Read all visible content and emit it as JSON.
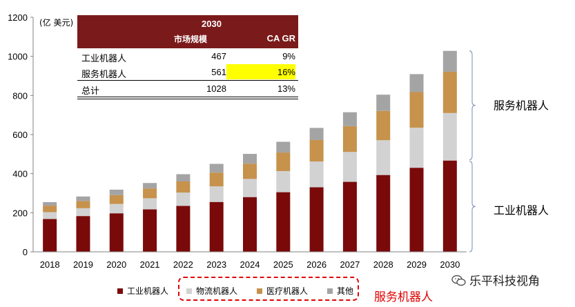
{
  "chart_data": {
    "type": "bar",
    "stacked": true,
    "unit_label": "(亿 美元)",
    "categories": [
      "2018",
      "2019",
      "2020",
      "2021",
      "2022",
      "2023",
      "2024",
      "2025",
      "2026",
      "2027",
      "2028",
      "2029",
      "2030"
    ],
    "series": [
      {
        "name": "工业机器人",
        "color": "#7a0a0a",
        "values": [
          168,
          183,
          197,
          217,
          235,
          255,
          280,
          305,
          330,
          358,
          393,
          430,
          467
        ]
      },
      {
        "name": "物流机器人",
        "color": "#d2d2d2",
        "values": [
          35,
          40,
          48,
          57,
          68,
          80,
          93,
          108,
          132,
          153,
          178,
          205,
          243
        ]
      },
      {
        "name": "医疗机器人",
        "color": "#c6924c",
        "values": [
          33,
          37,
          45,
          50,
          57,
          70,
          78,
          95,
          110,
          132,
          150,
          182,
          211
        ]
      },
      {
        "name": "其他",
        "color": "#a4a4a4",
        "values": [
          18,
          23,
          28,
          28,
          37,
          45,
          50,
          55,
          62,
          71,
          83,
          92,
          107
        ]
      }
    ],
    "ylim": [
      0,
      1200
    ],
    "yticks": [
      "0",
      "200",
      "400",
      "600",
      "800",
      "1000",
      "1200"
    ],
    "braces": {
      "service": "服务机器人",
      "industrial": "工业机器人"
    }
  },
  "inset_table": {
    "year": "2030",
    "col_market": "市场规模",
    "col_cagr": "CA GR",
    "rows": [
      {
        "label": "工业机器人",
        "value": "467",
        "cagr": "9%"
      },
      {
        "label": "服务机器人",
        "value": "561",
        "cagr": "16%"
      },
      {
        "label": "总计",
        "value": "1028",
        "cagr": "13%"
      }
    ]
  },
  "legend": {
    "service_group_label": "服务机器人"
  },
  "watermark": "乐平科技视角"
}
